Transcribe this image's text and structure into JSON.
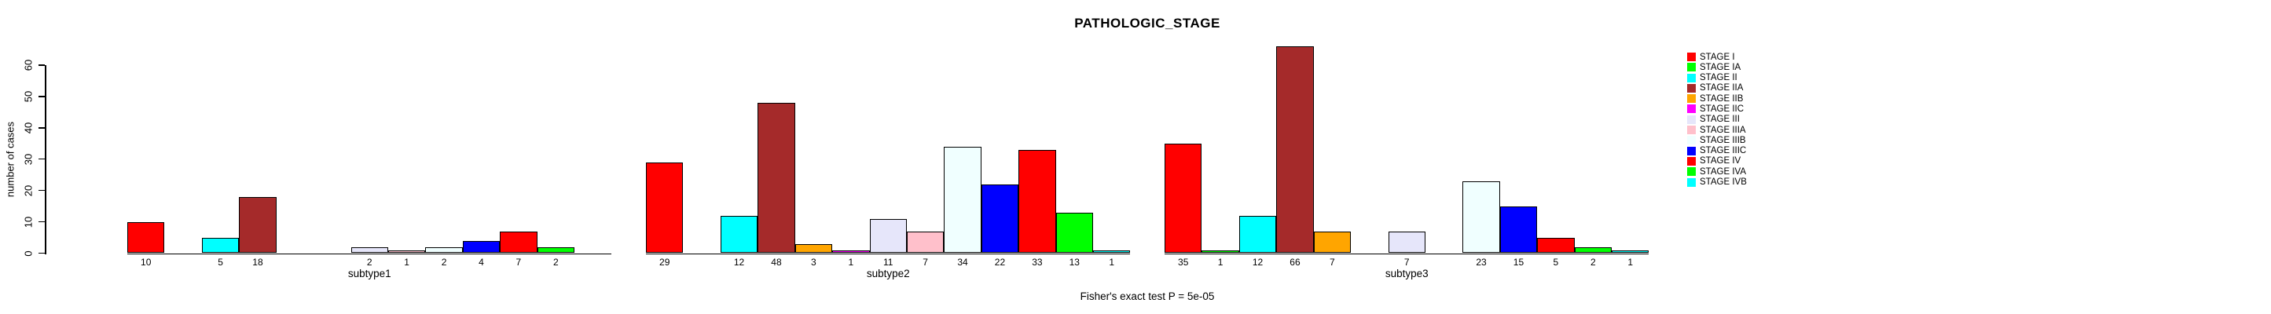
{
  "title": "PATHOLOGIC_STAGE",
  "annotation": "Fisher's exact test P = 5e-05",
  "y_axis": {
    "label": "number of cases",
    "ticks": [
      0,
      10,
      20,
      30,
      40,
      50,
      60
    ]
  },
  "legend": {
    "items": [
      {
        "label": "STAGE I",
        "color": "#FF0000"
      },
      {
        "label": "STAGE IA",
        "color": "#00FF00"
      },
      {
        "label": "STAGE II",
        "color": "#00FFFF"
      },
      {
        "label": "STAGE IIA",
        "color": "#A52A2A"
      },
      {
        "label": "STAGE IIB",
        "color": "#FFA500"
      },
      {
        "label": "STAGE IIC",
        "color": "#FF00FF"
      },
      {
        "label": "STAGE III",
        "color": "#E6E6FA"
      },
      {
        "label": "STAGE IIIA",
        "color": "#FFC0CB"
      },
      {
        "label": "STAGE IIIB",
        "color": "#F0FFFF"
      },
      {
        "label": "STAGE IIIC",
        "color": "#0000FF"
      },
      {
        "label": "STAGE IV",
        "color": "#FF0000"
      },
      {
        "label": "STAGE IVA",
        "color": "#00FF00"
      },
      {
        "label": "STAGE IVB",
        "color": "#00FFFF"
      }
    ]
  },
  "chart_data": {
    "type": "bar",
    "title": "PATHOLOGIC_STAGE",
    "xlabel": "",
    "ylabel": "number of cases",
    "ylim": [
      0,
      60
    ],
    "yticks": [
      0,
      10,
      20,
      30,
      40,
      50,
      60
    ],
    "grid": false,
    "legend_position": "right",
    "annotation": "Fisher's exact test P = 5e-05",
    "categories": [
      "STAGE I",
      "STAGE IA",
      "STAGE II",
      "STAGE IIA",
      "STAGE IIB",
      "STAGE IIC",
      "STAGE III",
      "STAGE IIIA",
      "STAGE IIIB",
      "STAGE IIIC",
      "STAGE IV",
      "STAGE IVA",
      "STAGE IVB"
    ],
    "colors": [
      "#FF0000",
      "#00FF00",
      "#00FFFF",
      "#A52A2A",
      "#FFA500",
      "#FF00FF",
      "#E6E6FA",
      "#FFC0CB",
      "#F0FFFF",
      "#0000FF",
      "#FF0000",
      "#00FF00",
      "#00FFFF"
    ],
    "bar_value_labels_shown": true,
    "groups": [
      {
        "label": "subtype1",
        "values": [
          10,
          0,
          5,
          18,
          0,
          0,
          2,
          1,
          2,
          4,
          7,
          2,
          0
        ]
      },
      {
        "label": "subtype2",
        "values": [
          29,
          0,
          12,
          48,
          3,
          1,
          11,
          7,
          34,
          22,
          33,
          13,
          1
        ]
      },
      {
        "label": "subtype3",
        "values": [
          35,
          1,
          12,
          66,
          7,
          0,
          7,
          0,
          23,
          15,
          5,
          2,
          1
        ]
      }
    ]
  }
}
